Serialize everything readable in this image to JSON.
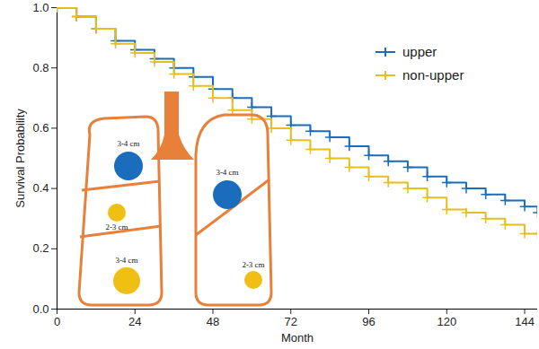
{
  "chart_data": {
    "type": "line",
    "x_label": "Month",
    "y_label": "Survival Probability",
    "xlim": [
      0,
      148
    ],
    "xticks": [
      0,
      24,
      48,
      72,
      96,
      120,
      144
    ],
    "ylim": [
      0,
      1
    ],
    "yticks": [
      {
        "value": 0,
        "label": "0.0"
      },
      {
        "value": 0.2,
        "label": "0.2"
      },
      {
        "value": 0.4,
        "label": "0.4"
      },
      {
        "value": 0.6,
        "label": "0.6"
      },
      {
        "value": 0.8,
        "label": "0.8"
      },
      {
        "value": 1,
        "label": "1.0"
      }
    ],
    "legend": "top-right",
    "line_style": "step",
    "marker": "plus",
    "x": [
      0,
      6,
      12,
      18,
      24,
      30,
      36,
      42,
      48,
      54,
      60,
      66,
      72,
      78,
      84,
      90,
      96,
      102,
      108,
      114,
      120,
      126,
      132,
      138,
      144,
      148
    ],
    "series": [
      {
        "name": "upper",
        "color": "#1a6dbd",
        "values": [
          1.0,
          0.97,
          0.93,
          0.89,
          0.86,
          0.83,
          0.8,
          0.77,
          0.73,
          0.7,
          0.67,
          0.64,
          0.61,
          0.59,
          0.57,
          0.54,
          0.51,
          0.49,
          0.47,
          0.44,
          0.42,
          0.4,
          0.38,
          0.36,
          0.34,
          0.32
        ]
      },
      {
        "name": "non-upper",
        "color": "#e6bf1e",
        "values": [
          1.0,
          0.97,
          0.93,
          0.88,
          0.85,
          0.82,
          0.78,
          0.74,
          0.7,
          0.66,
          0.63,
          0.6,
          0.56,
          0.53,
          0.5,
          0.47,
          0.44,
          0.42,
          0.4,
          0.37,
          0.33,
          0.32,
          0.3,
          0.28,
          0.25,
          0.25
        ]
      }
    ],
    "annotations": [
      {
        "text": "3-4 cm",
        "color": "#1a6dbd"
      },
      {
        "text": "2-3 cm",
        "color": "#f0bf14"
      },
      {
        "text": "3-4 cm",
        "color": "#f0bf14"
      },
      {
        "text": "3-4 cm",
        "color": "#1a6dbd"
      },
      {
        "text": "2-3 cm",
        "color": "#f0bf14"
      }
    ]
  }
}
